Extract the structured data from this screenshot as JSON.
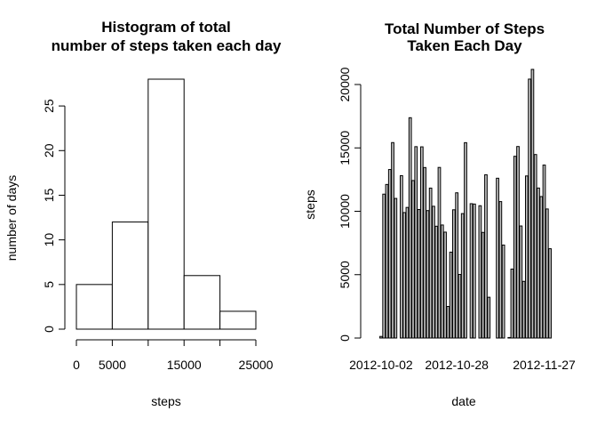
{
  "chart_data": [
    {
      "type": "bar",
      "subtype": "histogram",
      "title_lines": [
        "Histogram of total",
        "number of steps taken each day"
      ],
      "xlabel": "steps",
      "ylabel": "number of days",
      "bins": [
        {
          "from": 0,
          "to": 5000,
          "count": 5
        },
        {
          "from": 5000,
          "to": 10000,
          "count": 12
        },
        {
          "from": 10000,
          "to": 15000,
          "count": 28
        },
        {
          "from": 15000,
          "to": 20000,
          "count": 6
        },
        {
          "from": 20000,
          "to": 25000,
          "count": 2
        }
      ],
      "xlim": [
        0,
        25000
      ],
      "ylim": [
        0,
        28
      ],
      "x_ticks": [
        0,
        5000,
        10000,
        15000,
        20000,
        25000
      ],
      "x_tick_labels": [
        "0",
        "5000",
        "",
        "15000",
        "",
        "25000"
      ],
      "y_ticks": [
        0,
        5,
        10,
        15,
        20,
        25
      ],
      "y_tick_labels": [
        "0",
        "5",
        "10",
        "15",
        "20",
        "25"
      ],
      "colors": {
        "bar_fill": "#ffffff",
        "bar_stroke": "#000000"
      }
    },
    {
      "type": "bar",
      "title_lines": [
        "Total Number of Steps",
        "Taken Each Day"
      ],
      "xlabel": "date",
      "ylabel": "steps",
      "categories": [
        "2012-10-01",
        "2012-10-02",
        "2012-10-03",
        "2012-10-04",
        "2012-10-05",
        "2012-10-06",
        "2012-10-07",
        "2012-10-08",
        "2012-10-09",
        "2012-10-10",
        "2012-10-11",
        "2012-10-12",
        "2012-10-13",
        "2012-10-14",
        "2012-10-15",
        "2012-10-16",
        "2012-10-17",
        "2012-10-18",
        "2012-10-19",
        "2012-10-20",
        "2012-10-21",
        "2012-10-22",
        "2012-10-23",
        "2012-10-24",
        "2012-10-25",
        "2012-10-26",
        "2012-10-27",
        "2012-10-28",
        "2012-10-29",
        "2012-10-30",
        "2012-10-31",
        "2012-11-01",
        "2012-11-02",
        "2012-11-03",
        "2012-11-04",
        "2012-11-05",
        "2012-11-06",
        "2012-11-07",
        "2012-11-08",
        "2012-11-09",
        "2012-11-10",
        "2012-11-11",
        "2012-11-12",
        "2012-11-13",
        "2012-11-14",
        "2012-11-15",
        "2012-11-16",
        "2012-11-17",
        "2012-11-18",
        "2012-11-19",
        "2012-11-20",
        "2012-11-21",
        "2012-11-22",
        "2012-11-23",
        "2012-11-24",
        "2012-11-25",
        "2012-11-26",
        "2012-11-27",
        "2012-11-28",
        "2012-11-29",
        "2012-11-30"
      ],
      "values": [
        0,
        126,
        11352,
        12116,
        13294,
        15420,
        11015,
        0,
        12811,
        9900,
        10304,
        17382,
        12426,
        15098,
        10139,
        15084,
        13452,
        10056,
        11829,
        10395,
        8821,
        13460,
        8918,
        8355,
        2492,
        6778,
        10119,
        11458,
        5018,
        9819,
        15414,
        0,
        10600,
        10571,
        0,
        10439,
        8334,
        12883,
        3219,
        0,
        0,
        12608,
        10765,
        7336,
        0,
        41,
        5441,
        14339,
        15110,
        8841,
        4472,
        12787,
        20427,
        21194,
        14478,
        11834,
        11162,
        13646,
        10183,
        7047,
        0
      ],
      "ylim": [
        0,
        21194
      ],
      "x_tick_labels": [
        "2012-10-02",
        "2012-10-28",
        "2012-11-27"
      ],
      "y_ticks": [
        0,
        5000,
        10000,
        15000,
        20000
      ],
      "y_tick_labels": [
        "0",
        "5000",
        "10000",
        "15000",
        "20000"
      ],
      "colors": {
        "bar_fill": "#bebebe",
        "bar_stroke": "#000000"
      }
    }
  ]
}
